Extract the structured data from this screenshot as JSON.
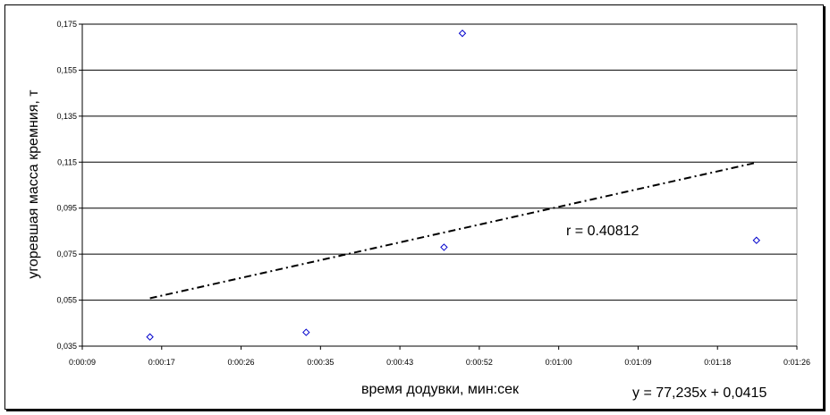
{
  "chart_data": {
    "type": "scatter",
    "xlabel": "время додувки, мин:сек",
    "ylabel": "угоревшая масса кремния, т",
    "xlim": [
      "0:00:09",
      "0:01:26"
    ],
    "ylim": [
      0.035,
      0.175
    ],
    "x_ticks": [
      "0:00:09",
      "0:00:17",
      "0:00:26",
      "0:00:35",
      "0:00:43",
      "0:00:52",
      "0:01:00",
      "0:01:09",
      "0:01:18",
      "0:01:26"
    ],
    "y_ticks": [
      "0,035",
      "0,055",
      "0,075",
      "0,095",
      "0,115",
      "0,135",
      "0,155",
      "0,175"
    ],
    "grid": "horizontal",
    "points": [
      {
        "x": "0:00:16",
        "y": 0.039
      },
      {
        "x": "0:00:33",
        "y": 0.041
      },
      {
        "x": "0:00:48",
        "y": 0.078
      },
      {
        "x": "0:00:50",
        "y": 0.171
      },
      {
        "x": "0:01:22",
        "y": 0.081
      }
    ],
    "trendline": {
      "slope": 77.235,
      "intercept": 0.0415,
      "x_range": [
        "0:00:16",
        "0:01:22"
      ],
      "style": "dash-dot"
    },
    "annotations": {
      "r": "r = 0.40812",
      "equation": "y = 77,235x + 0,0415"
    },
    "marker_color": "#0000cc"
  }
}
